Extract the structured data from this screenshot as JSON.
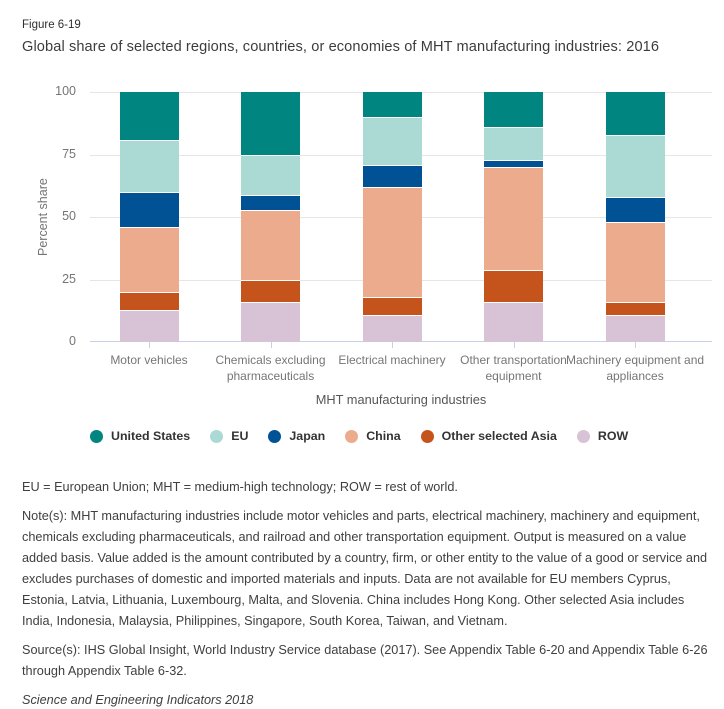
{
  "figure": {
    "label": "Figure 6-19",
    "title": "Global share of selected regions, countries, or economies of MHT manufacturing industries: 2016"
  },
  "chart_data": {
    "type": "bar",
    "stacked": true,
    "title": "Global share of selected regions, countries, or economies of MHT manufacturing industries: 2016",
    "xlabel": "MHT manufacturing industries",
    "ylabel": "Percent share",
    "ylim": [
      0,
      100
    ],
    "yticks": [
      0,
      25,
      50,
      75,
      100
    ],
    "grid": true,
    "legend_position": "bottom",
    "categories": [
      "Motor vehicles",
      "Chemicals excluding pharmaceuticals",
      "Electrical machinery",
      "Other transportation equipment",
      "Machinery equipment and appliances"
    ],
    "series": [
      {
        "name": "United States",
        "color": "#008580",
        "values": [
          19,
          25,
          10,
          14,
          17
        ]
      },
      {
        "name": "EU",
        "color": "#abdad4",
        "values": [
          21,
          16,
          19,
          13,
          25
        ]
      },
      {
        "name": "Japan",
        "color": "#005294",
        "values": [
          14,
          6,
          9,
          3,
          10
        ]
      },
      {
        "name": "China",
        "color": "#ecab8c",
        "values": [
          26,
          28,
          44,
          41,
          32
        ]
      },
      {
        "name": "Other selected Asia",
        "color": "#c4531c",
        "values": [
          7,
          9,
          7,
          13,
          5
        ]
      },
      {
        "name": "ROW",
        "color": "#d8c2d5",
        "values": [
          13,
          16,
          11,
          16,
          11
        ]
      }
    ],
    "axis_colors": {
      "axis_line": "#c9cfe4",
      "gridline": "#e6e6e6",
      "tick_label": "#757575"
    }
  },
  "footnotes": {
    "abbreviations": "EU = European Union; MHT = medium-high technology; ROW = rest of world.",
    "notes": "Note(s): MHT manufacturing industries include motor vehicles and parts, electrical machinery, machinery and equipment, chemicals excluding pharmaceuticals, and railroad and other transportation equipment. Output is measured on a value added basis. Value added is the amount contributed by a country, firm, or other entity to the value of a good or service and excludes purchases of domestic and imported materials and inputs. Data are not available for EU members Cyprus, Estonia, Latvia, Lithuania, Luxembourg, Malta, and Slovenia. China includes Hong Kong. Other selected Asia includes India, Indonesia, Malaysia, Philippines, Singapore, South Korea, Taiwan, and Vietnam.",
    "source": "Source(s): IHS Global Insight, World Industry Service database (2017). See Appendix Table 6-20 and Appendix Table 6-26 through Appendix Table 6-32.",
    "publication": "Science and Engineering Indicators 2018"
  }
}
